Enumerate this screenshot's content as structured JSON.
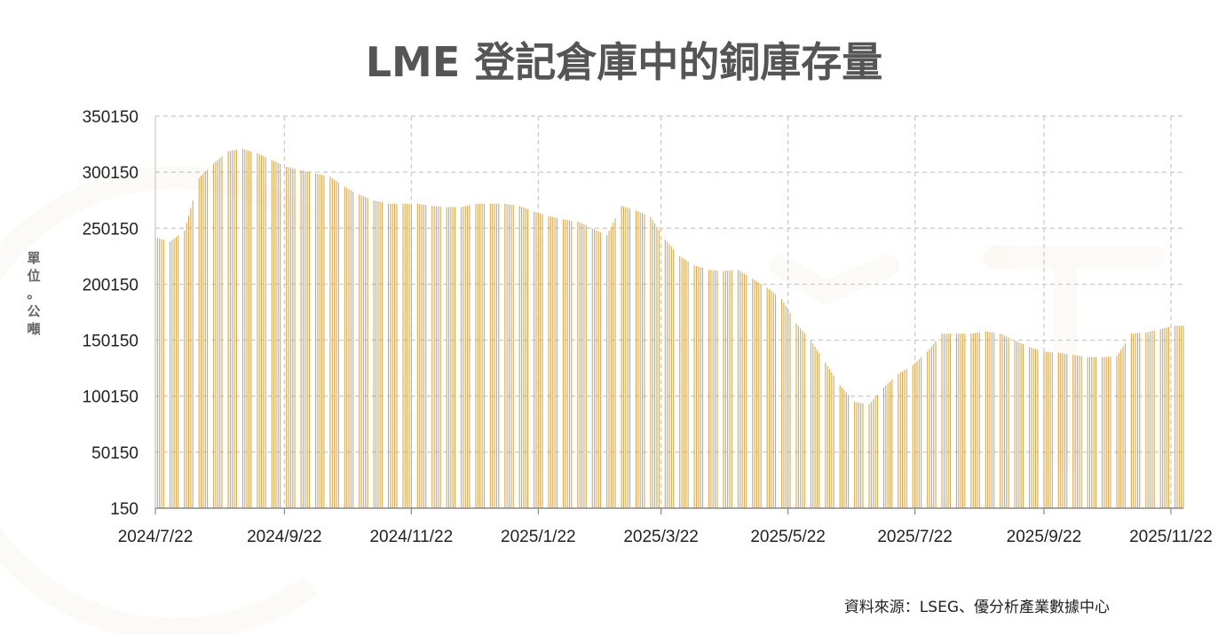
{
  "chart_data": {
    "type": "bar",
    "title": "LME 登記倉庫中的銅庫存量",
    "ylabel": "單位。公噸",
    "xlabel": "",
    "ylim": [
      150,
      350150
    ],
    "yticks": [
      "350150",
      "300150",
      "250150",
      "200150",
      "150150",
      "100150",
      "50150",
      "150"
    ],
    "xticks": [
      "2024/7/22",
      "2024/9/22",
      "2024/11/22",
      "2025/1/22",
      "2025/3/22",
      "2025/5/22",
      "2025/7/22",
      "2025/9/22",
      "2025/11/22"
    ],
    "grid": true,
    "color": "#D4AA55",
    "x_start": "2024-07-22",
    "x_end": "2025-11-28",
    "source": "資料來源：LSEG、優分析產業數據中心",
    "series": [
      {
        "points": [
          [
            "2024-07-22",
            242000
          ],
          [
            "2024-07-29",
            238000
          ],
          [
            "2024-08-05",
            248000
          ],
          [
            "2024-08-12",
            295000
          ],
          [
            "2024-08-19",
            308000
          ],
          [
            "2024-08-26",
            319000
          ],
          [
            "2024-09-02",
            321000
          ],
          [
            "2024-09-09",
            317000
          ],
          [
            "2024-09-16",
            311000
          ],
          [
            "2024-09-23",
            305000
          ],
          [
            "2024-09-30",
            302000
          ],
          [
            "2024-10-07",
            299000
          ],
          [
            "2024-10-14",
            296000
          ],
          [
            "2024-10-21",
            287000
          ],
          [
            "2024-10-28",
            280000
          ],
          [
            "2024-11-04",
            275000
          ],
          [
            "2024-11-11",
            272000
          ],
          [
            "2024-11-18",
            272000
          ],
          [
            "2024-11-25",
            272000
          ],
          [
            "2024-12-02",
            270000
          ],
          [
            "2024-12-09",
            269000
          ],
          [
            "2024-12-16",
            269000
          ],
          [
            "2024-12-23",
            272000
          ],
          [
            "2024-12-30",
            272000
          ],
          [
            "2025-01-06",
            272000
          ],
          [
            "2025-01-13",
            270000
          ],
          [
            "2025-01-20",
            265000
          ],
          [
            "2025-01-27",
            261000
          ],
          [
            "2025-02-03",
            258000
          ],
          [
            "2025-02-10",
            256000
          ],
          [
            "2025-02-17",
            250000
          ],
          [
            "2025-02-24",
            244000
          ],
          [
            "2025-03-03",
            270000
          ],
          [
            "2025-03-10",
            266000
          ],
          [
            "2025-03-17",
            260000
          ],
          [
            "2025-03-24",
            240000
          ],
          [
            "2025-03-31",
            225000
          ],
          [
            "2025-04-07",
            217000
          ],
          [
            "2025-04-14",
            213000
          ],
          [
            "2025-04-21",
            212000
          ],
          [
            "2025-04-28",
            213000
          ],
          [
            "2025-05-05",
            205000
          ],
          [
            "2025-05-12",
            197000
          ],
          [
            "2025-05-19",
            187000
          ],
          [
            "2025-05-26",
            165000
          ],
          [
            "2025-06-02",
            150000
          ],
          [
            "2025-06-09",
            130000
          ],
          [
            "2025-06-16",
            110000
          ],
          [
            "2025-06-23",
            95000
          ],
          [
            "2025-06-30",
            93000
          ],
          [
            "2025-07-07",
            108000
          ],
          [
            "2025-07-14",
            120000
          ],
          [
            "2025-07-21",
            128000
          ],
          [
            "2025-07-28",
            140000
          ],
          [
            "2025-08-04",
            156000
          ],
          [
            "2025-08-11",
            156000
          ],
          [
            "2025-08-18",
            156000
          ],
          [
            "2025-08-25",
            158000
          ],
          [
            "2025-09-01",
            156000
          ],
          [
            "2025-09-08",
            150000
          ],
          [
            "2025-09-15",
            144000
          ],
          [
            "2025-09-22",
            140000
          ],
          [
            "2025-09-29",
            139000
          ],
          [
            "2025-10-06",
            137000
          ],
          [
            "2025-10-13",
            135000
          ],
          [
            "2025-10-20",
            135000
          ],
          [
            "2025-10-27",
            136000
          ],
          [
            "2025-11-03",
            156000
          ],
          [
            "2025-11-10",
            157000
          ],
          [
            "2025-11-17",
            160000
          ],
          [
            "2025-11-24",
            163000
          ]
        ]
      }
    ]
  }
}
